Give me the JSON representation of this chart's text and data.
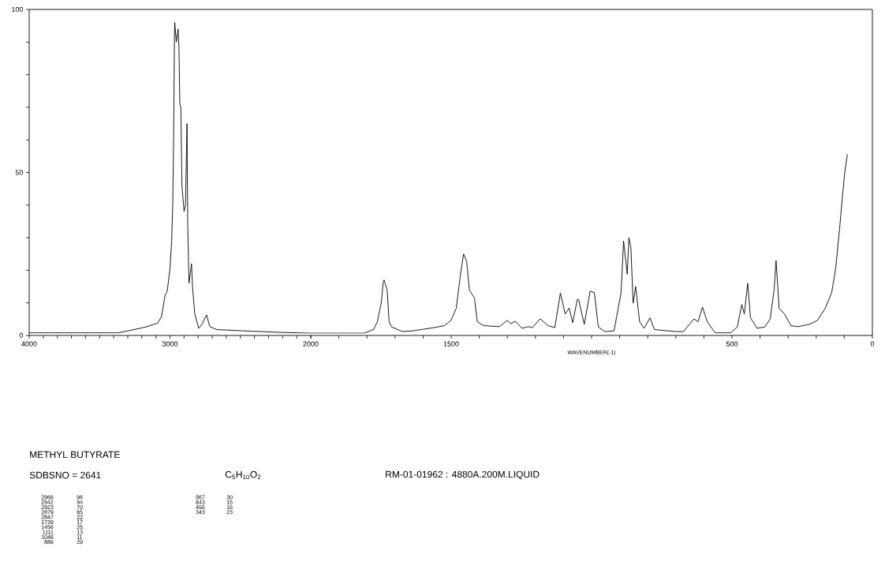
{
  "chart_data": [
    {
      "type": "line",
      "title": "METHYL BUTYRATE",
      "subtitle": "SDBSNO = 2641",
      "annotations": [
        "C$_{5}$H$_{10}$O$_{2}$",
        "RM-01-01962 : 4880A.200M.LIQUID",
        "2966",
        "96",
        "2942",
        "94",
        "2923",
        "70",
        "2879",
        "65",
        "2847",
        "22",
        "1739",
        "17",
        "1456",
        "25",
        "1111",
        "13",
        "1046",
        "11",
        "886",
        "29",
        "867",
        "30",
        "843",
        "15",
        "456",
        "16",
        "343",
        "23"
      ],
      "xlim": [
        4000,
        2000
      ],
      "ylim": [
        0,
        100
      ],
      "xticks": [
        4000,
        {
          "value": 3900,
          "label": null
        },
        {
          "value": 3800,
          "label": null
        },
        {
          "value": 3700,
          "label": null
        },
        {
          "value": 3600,
          "label": null
        },
        {
          "value": 3500,
          "label": null
        },
        {
          "value": 3400,
          "label": null
        },
        {
          "value": 3300,
          "label": null
        },
        {
          "value": 3200,
          "label": null
        },
        {
          "value": 3100,
          "label": null
        },
        3000,
        {
          "value": 2900,
          "label": null
        },
        {
          "value": 2800,
          "label": null
        },
        {
          "value": 2700,
          "label": null
        },
        {
          "value": 2600,
          "label": null
        },
        {
          "value": 2500,
          "label": null
        },
        {
          "value": 2400,
          "label": null
        },
        {
          "value": 2300,
          "label": null
        },
        {
          "value": 2200,
          "label": null
        },
        {
          "value": 2100,
          "label": null
        },
        2000
      ],
      "yticks": [
        0,
        {
          "value": 10,
          "label": null
        },
        {
          "value": 20,
          "label": null
        },
        {
          "value": 30,
          "label": null
        },
        {
          "value": 40,
          "label": null
        },
        50,
        {
          "value": 60,
          "label": null
        },
        {
          "value": 70,
          "label": null
        },
        {
          "value": 80,
          "label": null
        },
        {
          "value": 90,
          "label": null
        },
        100
      ],
      "marker": "none",
      "line_style": "solid",
      "series": [
        {
          "color": "#000000",
          "x": [
            4000,
            3367,
            3255,
            3171,
            3087,
            3060,
            3035,
            3020,
            3000,
            2988,
            2980,
            2974,
            2968,
            2966,
            2955,
            2942,
            2936,
            2930,
            2923,
            2915,
            2900,
            2890,
            2879,
            2874,
            2865,
            2847,
            2840,
            2824,
            2796,
            2773,
            2740,
            2717,
            2667,
            2527,
            2247,
            2000
          ],
          "values": [
            0.8,
            0.8,
            1.8,
            2.6,
            3.8,
            5.8,
            12.3,
            13.5,
            20.4,
            29,
            41,
            61,
            93,
            96,
            90,
            94,
            88,
            71,
            70,
            46,
            38,
            40,
            65,
            34,
            16,
            22,
            15,
            6.6,
            2.2,
            3.4,
            6.3,
            2.7,
            1.8,
            1.5,
            1.0,
            0.7
          ]
        }
      ]
    },
    {
      "type": "line",
      "xlabel": "WAVENUMBER(-1)",
      "xlim": [
        2000,
        0
      ],
      "ylim": [
        0,
        100
      ],
      "tick_labels": "x",
      "xticks": [
        {
          "value": 2000,
          "label": null
        },
        {
          "value": 1900,
          "label": null
        },
        {
          "value": 1800,
          "label": null
        },
        {
          "value": 1700,
          "label": null
        },
        {
          "value": 1600,
          "label": null
        },
        1500,
        {
          "value": 1400,
          "label": null
        },
        {
          "value": 1300,
          "label": null
        },
        {
          "value": 1200,
          "label": null
        },
        {
          "value": 1100,
          "label": null
        },
        {
          "value": 1000,
          "label": null
        },
        {
          "value": 900,
          "label": null
        },
        {
          "value": 800,
          "label": null
        },
        {
          "value": 700,
          "label": null
        },
        {
          "value": 600,
          "label": null
        },
        500,
        {
          "value": 400,
          "label": null
        },
        {
          "value": 300,
          "label": null
        },
        {
          "value": 200,
          "label": null
        },
        {
          "value": 100,
          "label": null
        },
        0
      ],
      "marker": "none",
      "line_style": "solid",
      "series": [
        {
          "color": "#000000",
          "x": [
            2000,
            1810,
            1777,
            1763,
            1749,
            1742,
            1739,
            1728,
            1721,
            1712,
            1674,
            1638,
            1599,
            1562,
            1524,
            1501,
            1482,
            1468,
            1456,
            1445,
            1435,
            1417,
            1407,
            1384,
            1328,
            1301,
            1286,
            1272,
            1248,
            1225,
            1211,
            1183,
            1155,
            1131,
            1111,
            1094,
            1080,
            1067,
            1051,
            1046,
            1026,
            1005,
            990,
            976,
            953,
            920,
            895,
            886,
            873,
            867,
            860,
            852,
            843,
            829,
            813,
            792,
            776,
            739,
            701,
            673,
            635,
            621,
            605,
            588,
            560,
            504,
            481,
            465,
            456,
            444,
            434,
            425,
            411,
            383,
            364,
            350,
            343,
            332,
            313,
            290,
            266,
            224,
            196,
            168,
            145,
            131,
            117,
            107,
            98,
            89
          ],
          "values": [
            0.7,
            0.7,
            1.8,
            4.2,
            9.9,
            16.3,
            17,
            13.9,
            4.2,
            2.6,
            1.2,
            1.4,
            1.9,
            2.4,
            3.0,
            4.6,
            8.3,
            18,
            25,
            22.8,
            13.9,
            11.5,
            4.2,
            3.0,
            2.7,
            4.6,
            3.6,
            4.4,
            2.2,
            2.7,
            2.4,
            5.1,
            3.0,
            2.4,
            13,
            6.6,
            8.4,
            3.9,
            11,
            11,
            3.4,
            13.6,
            13.1,
            2.6,
            1.2,
            1.4,
            13.1,
            29,
            18.8,
            30,
            26.9,
            9.9,
            15,
            4.2,
            2.2,
            5.4,
            1.8,
            1.5,
            1.2,
            1.2,
            5.1,
            4.2,
            8.7,
            4.2,
            0.8,
            0.8,
            2.6,
            9.5,
            6.6,
            16,
            5.4,
            4.2,
            2.2,
            2.6,
            5.1,
            13.9,
            23,
            8.3,
            6.6,
            3.0,
            2.7,
            3.4,
            4.6,
            8.3,
            13.1,
            20.4,
            32.5,
            42.2,
            50.3,
            55.6
          ]
        }
      ]
    }
  ]
}
